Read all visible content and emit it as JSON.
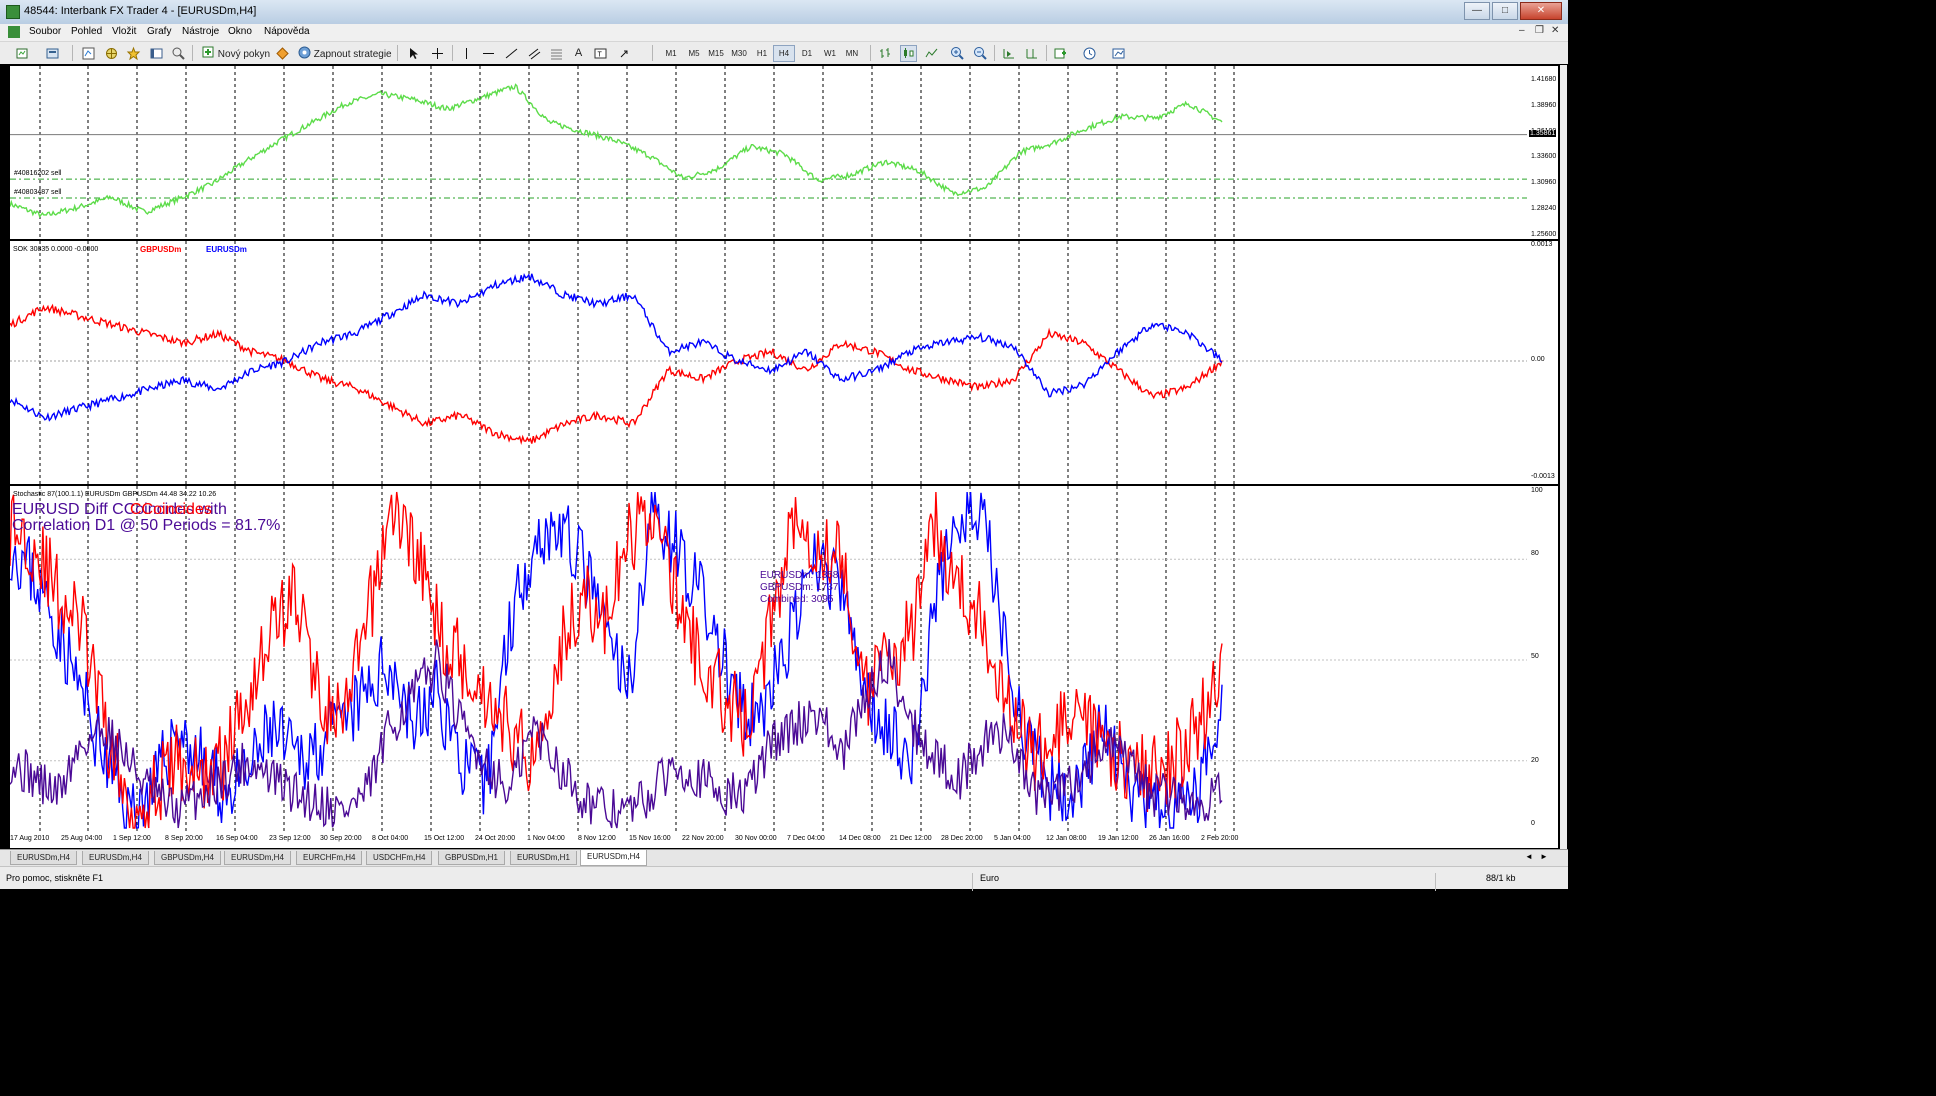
{
  "window": {
    "title": "48544: Interbank FX Trader 4 - [EURUSDm,H4]",
    "min": "—",
    "max": "□",
    "close": "✕"
  },
  "menu": [
    "Soubor",
    "Pohled",
    "Vložit",
    "Grafy",
    "Nástroje",
    "Okno",
    "Nápověda"
  ],
  "mdi_controls": {
    "min": "–",
    "restore": "❐",
    "close": "✕"
  },
  "toolbar": {
    "new_order": "Nový pokyn",
    "strategy": "Zapnout strategie",
    "timeframes": [
      "M1",
      "M5",
      "M15",
      "M30",
      "H1",
      "H4",
      "D1",
      "W1",
      "MN"
    ],
    "active_timeframe": "H4",
    "text_tool": "A",
    "icons": [
      "new-chart-icon",
      "profiles-icon",
      "market-watch-icon",
      "navigator-icon",
      "favorites-icon",
      "terminal-icon",
      "tester-icon",
      "new-order-icon",
      "metaeditor-icon",
      "strategy-icon",
      "cursor-icon",
      "crosshair-icon",
      "vertical-line-icon",
      "horizontal-line-icon",
      "trendline-icon",
      "equidistant-channel-icon",
      "fibonacci-icon",
      "text-icon",
      "text-label-icon",
      "arrows-icon",
      "bar-chart-icon",
      "candlestick-icon",
      "line-chart-icon",
      "zoom-in-icon",
      "zoom-out-icon",
      "auto-scroll-icon",
      "chart-shift-icon",
      "indicators-icon",
      "periods-icon",
      "templates-icon"
    ]
  },
  "colors": {
    "green": "#5ddc4a",
    "red": "#ff0000",
    "blue": "#0000ff",
    "purple": "#4b0a96"
  },
  "price_pane": {
    "y_labels": [
      "1.41680",
      "1.38960",
      "1.36100",
      "1.33600",
      "1.30960",
      "1.28240",
      "1.25600"
    ],
    "current_price": "1.35861",
    "orders": [
      {
        "label": "#40816202 sell",
        "price": 1.3113
      },
      {
        "label": "#40803487 sell",
        "price": 1.2912
      }
    ]
  },
  "sok_pane": {
    "header": "SOK 30835 0.0000 -0.0000",
    "legend": [
      {
        "name": "GBPUSDm",
        "color": "#ff0000"
      },
      {
        "name": "EURUSDm",
        "color": "#0000ff"
      }
    ],
    "y_labels": [
      "0.0013",
      "0.00",
      "-0.0013"
    ]
  },
  "stoch_pane": {
    "header": "Stochastic 87(100.1.1) EURUSDm GBPUSDm 44.48 34.22 10.26",
    "comment_line1": "EURUSD  Diff CCoincides with",
    "comment_line2": "Correlation D1 @ 50 Periods = 81.7%",
    "overlap_text": "CCoincides",
    "counts": [
      "EURUSDm: 1358",
      "GBPUSDm: 1737",
      "Combined: 3095"
    ],
    "y_labels": [
      "100",
      "80",
      "50",
      "20",
      "0"
    ]
  },
  "x_labels": [
    "17 Aug 2010",
    "25 Aug 04:00",
    "1 Sep 12:00",
    "8 Sep 20:00",
    "16 Sep 04:00",
    "23 Sep 12:00",
    "30 Sep 20:00",
    "8 Oct 04:00",
    "15 Oct 12:00",
    "24 Oct 20:00",
    "1 Nov 04:00",
    "8 Nov 12:00",
    "15 Nov 16:00",
    "22 Nov 20:00",
    "30 Nov 00:00",
    "7 Dec 04:00",
    "14 Dec 08:00",
    "21 Dec 12:00",
    "28 Dec 20:00",
    "5 Jan 04:00",
    "12 Jan 08:00",
    "19 Jan 12:00",
    "26 Jan 16:00",
    "2 Feb 20:00"
  ],
  "tabs": [
    "EURUSDm,H4",
    "EURUSDm,H4",
    "GBPUSDm,H4",
    "EURUSDm,H4",
    "EURCHFm,H4",
    "USDCHFm,H4",
    "GBPUSDm,H1",
    "EURUSDm,H1",
    "EURUSDm,H4"
  ],
  "active_tab": 8,
  "status": {
    "help": "Pro pomoc, stiskněte F1",
    "profile": "Euro",
    "traffic": "88/1 kb"
  }
}
